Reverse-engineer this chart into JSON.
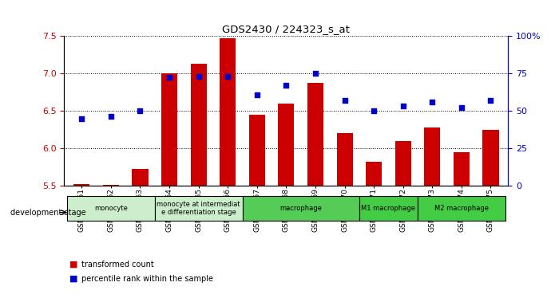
{
  "title": "GDS2430 / 224323_s_at",
  "samples": [
    "GSM115061",
    "GSM115062",
    "GSM115063",
    "GSM115064",
    "GSM115065",
    "GSM115066",
    "GSM115067",
    "GSM115068",
    "GSM115069",
    "GSM115070",
    "GSM115071",
    "GSM115072",
    "GSM115073",
    "GSM115074",
    "GSM115075"
  ],
  "bar_values": [
    5.52,
    5.51,
    5.72,
    7.0,
    7.13,
    7.47,
    6.45,
    6.6,
    6.88,
    6.2,
    5.82,
    6.1,
    6.28,
    5.95,
    6.25
  ],
  "scatter_values_left": [
    6.4,
    6.43,
    6.5,
    6.95,
    6.96,
    6.96,
    6.72,
    6.84,
    7.0,
    6.64,
    6.5,
    6.57,
    6.62,
    6.55,
    6.64
  ],
  "bar_color": "#cc0000",
  "scatter_color": "#0000cc",
  "ylim_left": [
    5.5,
    7.5
  ],
  "ylim_right": [
    0,
    100
  ],
  "yticks_left": [
    5.5,
    6.0,
    6.5,
    7.0,
    7.5
  ],
  "yticks_right": [
    0,
    25,
    50,
    75,
    100
  ],
  "ytick_labels_right": [
    "0",
    "25",
    "50",
    "75",
    "100%"
  ],
  "bar_bottom": 5.5,
  "groups": [
    {
      "label": "monocyte",
      "start": 0,
      "end": 2,
      "color": "#cceecc"
    },
    {
      "label": "monocyte at intermediat\ne differentiation stage",
      "start": 3,
      "end": 5,
      "color": "#cceecc"
    },
    {
      "label": "macrophage",
      "start": 6,
      "end": 9,
      "color": "#55cc55"
    },
    {
      "label": "M1 macrophage",
      "start": 10,
      "end": 11,
      "color": "#44cc44"
    },
    {
      "label": "M2 macrophage",
      "start": 12,
      "end": 14,
      "color": "#44cc44"
    }
  ],
  "dev_stage_label": "development stage",
  "legend_bar": "transformed count",
  "legend_scatter": "percentile rank within the sample"
}
